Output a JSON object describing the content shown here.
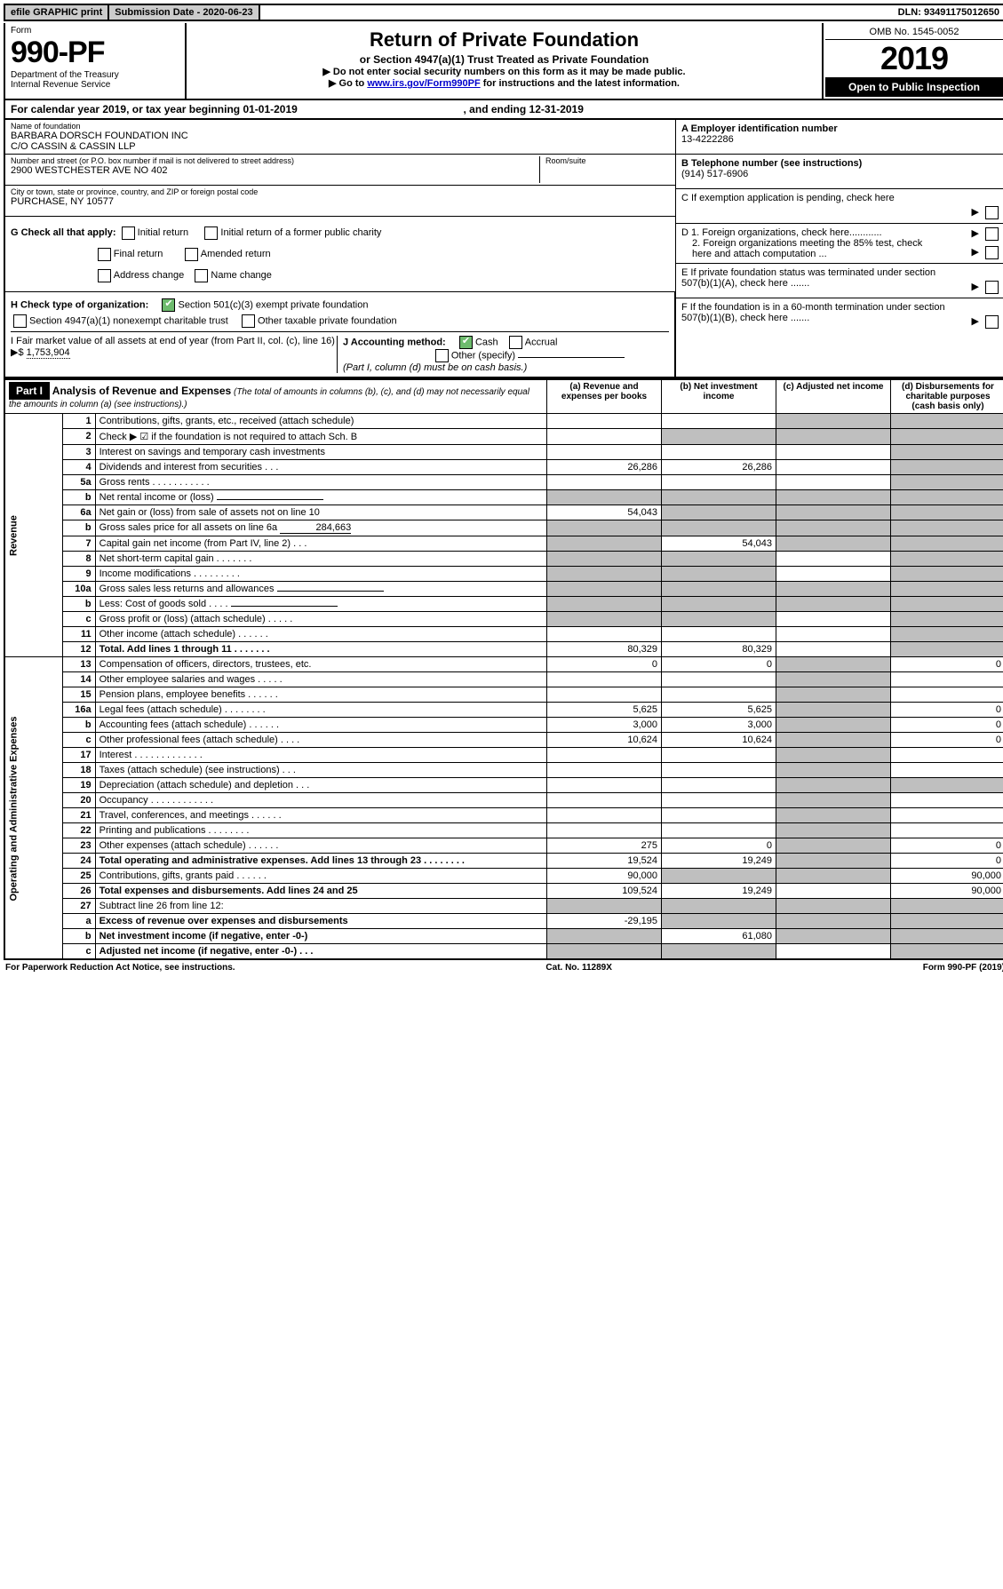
{
  "topbar": {
    "efile": "efile GRAPHIC print",
    "submission": "Submission Date - 2020-06-23",
    "dln": "DLN: 93491175012650"
  },
  "header": {
    "form_word": "Form",
    "form_num": "990-PF",
    "dept": "Department of the Treasury",
    "irs": "Internal Revenue Service",
    "title": "Return of Private Foundation",
    "subtitle": "or Section 4947(a)(1) Trust Treated as Private Foundation",
    "note1": "▶ Do not enter social security numbers on this form as it may be made public.",
    "note2_pre": "▶ Go to ",
    "note2_link": "www.irs.gov/Form990PF",
    "note2_post": " for instructions and the latest information.",
    "omb": "OMB No. 1545-0052",
    "year": "2019",
    "open": "Open to Public Inspection"
  },
  "calyear": {
    "text_pre": "For calendar year 2019, or tax year beginning 01-01-2019",
    "text_mid": ", and ending 12-31-2019"
  },
  "name": {
    "lbl": "Name of foundation",
    "line1": "BARBARA DORSCH FOUNDATION INC",
    "line2": "C/O CASSIN & CASSIN LLP"
  },
  "ein": {
    "lbl": "A Employer identification number",
    "val": "13-4222286"
  },
  "street": {
    "lbl": "Number and street (or P.O. box number if mail is not delivered to street address)",
    "val": "2900 WESTCHESTER AVE NO 402",
    "room_lbl": "Room/suite"
  },
  "phone": {
    "lbl": "B Telephone number (see instructions)",
    "val": "(914) 517-6906"
  },
  "city": {
    "lbl": "City or town, state or province, country, and ZIP or foreign postal code",
    "val": "PURCHASE, NY  10577"
  },
  "c_box": "C If exemption application is pending, check here",
  "g": {
    "label": "G Check all that apply:",
    "o1": "Initial return",
    "o2": "Final return",
    "o3": "Address change",
    "o4": "Initial return of a former public charity",
    "o5": "Amended return",
    "o6": "Name change"
  },
  "d": {
    "d1": "D 1. Foreign organizations, check here............",
    "d2": "2. Foreign organizations meeting the 85% test, check here and attach computation ..."
  },
  "e_box": "E  If private foundation status was terminated under section 507(b)(1)(A), check here .......",
  "f_box": "F  If the foundation is in a 60-month termination under section 507(b)(1)(B), check here .......",
  "h": {
    "label": "H Check type of organization:",
    "o1": "Section 501(c)(3) exempt private foundation",
    "o2": "Section 4947(a)(1) nonexempt charitable trust",
    "o3": "Other taxable private foundation"
  },
  "i": {
    "label": "I Fair market value of all assets at end of year (from Part II, col. (c), line 16) ▶$ ",
    "val": "1,753,904"
  },
  "j": {
    "label": "J Accounting method:",
    "cash": "Cash",
    "accrual": "Accrual",
    "other": "Other (specify)",
    "note": "(Part I, column (d) must be on cash basis.)"
  },
  "part1": {
    "label": "Part I",
    "title": "Analysis of Revenue and Expenses",
    "note": " (The total of amounts in columns (b), (c), and (d) may not necessarily equal the amounts in column (a) (see instructions).)",
    "col_a": "(a)  Revenue and expenses per books",
    "col_b": "(b)  Net investment income",
    "col_c": "(c)  Adjusted net income",
    "col_d": "(d)  Disbursements for charitable purposes (cash basis only)"
  },
  "labels": {
    "revenue": "Revenue",
    "expenses": "Operating and Administrative Expenses"
  },
  "rows": [
    {
      "num": "1",
      "desc": "Contributions, gifts, grants, etc., received (attach schedule)",
      "a": "",
      "b": "",
      "c": "g",
      "d": "g"
    },
    {
      "num": "2",
      "desc": "Check ▶ ☑ if the foundation is not required to attach Sch. B",
      "a": "",
      "b": "g",
      "c": "g",
      "d": "g",
      "dotsrow": true
    },
    {
      "num": "3",
      "desc": "Interest on savings and temporary cash investments",
      "a": "",
      "b": "",
      "c": "",
      "d": "g"
    },
    {
      "num": "4",
      "desc": "Dividends and interest from securities    .   .   .",
      "a": "26,286",
      "b": "26,286",
      "c": "",
      "d": "g"
    },
    {
      "num": "5a",
      "desc": "Gross rents    .   .   .   .   .   .   .   .   .   .   .",
      "a": "",
      "b": "",
      "c": "",
      "d": "g"
    },
    {
      "num": "b",
      "desc": "Net rental income or (loss)  ",
      "a": "g",
      "b": "g",
      "c": "g",
      "d": "g",
      "inlinebox": true
    },
    {
      "num": "6a",
      "desc": "Net gain or (loss) from sale of assets not on line 10",
      "a": "54,043",
      "b": "g",
      "c": "g",
      "d": "g"
    },
    {
      "num": "b",
      "desc": "Gross sales price for all assets on line 6a ",
      "a": "g",
      "b": "g",
      "c": "g",
      "d": "g",
      "inlineval": "284,663"
    },
    {
      "num": "7",
      "desc": "Capital gain net income (from Part IV, line 2)    .   .   .",
      "a": "g",
      "b": "54,043",
      "c": "g",
      "d": "g"
    },
    {
      "num": "8",
      "desc": "Net short-term capital gain    .   .   .   .   .   .   .",
      "a": "g",
      "b": "g",
      "c": "",
      "d": "g"
    },
    {
      "num": "9",
      "desc": "Income modifications   .   .   .   .   .   .   .   .   .",
      "a": "g",
      "b": "g",
      "c": "",
      "d": "g"
    },
    {
      "num": "10a",
      "desc": "Gross sales less returns and allowances",
      "a": "g",
      "b": "g",
      "c": "g",
      "d": "g",
      "inlinebox": true
    },
    {
      "num": "b",
      "desc": "Less: Cost of goods sold      .   .   .   .",
      "a": "g",
      "b": "g",
      "c": "g",
      "d": "g",
      "inlinebox": true
    },
    {
      "num": "c",
      "desc": "Gross profit or (loss) (attach schedule)    .   .   .   .   .",
      "a": "g",
      "b": "g",
      "c": "",
      "d": "g"
    },
    {
      "num": "11",
      "desc": "Other income (attach schedule)    .   .   .   .   .   .",
      "a": "",
      "b": "",
      "c": "",
      "d": "g"
    },
    {
      "num": "12",
      "desc": "Total. Add lines 1 through 11    .   .   .   .   .   .   .",
      "a": "80,329",
      "b": "80,329",
      "c": "",
      "d": "g",
      "bold": true
    },
    {
      "num": "13",
      "desc": "Compensation of officers, directors, trustees, etc.",
      "a": "0",
      "b": "0",
      "c": "g",
      "d": "0"
    },
    {
      "num": "14",
      "desc": "Other employee salaries and wages     .   .   .   .   .",
      "a": "",
      "b": "",
      "c": "g",
      "d": ""
    },
    {
      "num": "15",
      "desc": "Pension plans, employee benefits    .   .   .   .   .   .",
      "a": "",
      "b": "",
      "c": "g",
      "d": ""
    },
    {
      "num": "16a",
      "desc": "Legal fees (attach schedule)   .   .   .   .   .   .   .   .",
      "a": "5,625",
      "b": "5,625",
      "c": "g",
      "d": "0"
    },
    {
      "num": "b",
      "desc": "Accounting fees (attach schedule)   .   .   .   .   .   .",
      "a": "3,000",
      "b": "3,000",
      "c": "g",
      "d": "0"
    },
    {
      "num": "c",
      "desc": "Other professional fees (attach schedule)     .   .   .   .",
      "a": "10,624",
      "b": "10,624",
      "c": "g",
      "d": "0"
    },
    {
      "num": "17",
      "desc": "Interest   .   .   .   .   .   .   .   .   .   .   .   .   .",
      "a": "",
      "b": "",
      "c": "g",
      "d": ""
    },
    {
      "num": "18",
      "desc": "Taxes (attach schedule) (see instructions)     .   .   .",
      "a": "",
      "b": "",
      "c": "g",
      "d": ""
    },
    {
      "num": "19",
      "desc": "Depreciation (attach schedule) and depletion    .   .   .",
      "a": "",
      "b": "",
      "c": "g",
      "d": "g"
    },
    {
      "num": "20",
      "desc": "Occupancy   .   .   .   .   .   .   .   .   .   .   .   .",
      "a": "",
      "b": "",
      "c": "g",
      "d": ""
    },
    {
      "num": "21",
      "desc": "Travel, conferences, and meetings   .   .   .   .   .   .",
      "a": "",
      "b": "",
      "c": "g",
      "d": ""
    },
    {
      "num": "22",
      "desc": "Printing and publications   .   .   .   .   .   .   .   .",
      "a": "",
      "b": "",
      "c": "g",
      "d": ""
    },
    {
      "num": "23",
      "desc": "Other expenses (attach schedule)   .   .   .   .   .   .",
      "a": "275",
      "b": "0",
      "c": "g",
      "d": "0"
    },
    {
      "num": "24",
      "desc": "Total operating and administrative expenses. Add lines 13 through 23   .   .   .   .   .   .   .   .",
      "a": "19,524",
      "b": "19,249",
      "c": "g",
      "d": "0",
      "bold": true
    },
    {
      "num": "25",
      "desc": "Contributions, gifts, grants paid       .   .   .   .   .   .",
      "a": "90,000",
      "b": "g",
      "c": "g",
      "d": "90,000"
    },
    {
      "num": "26",
      "desc": "Total expenses and disbursements. Add lines 24 and 25",
      "a": "109,524",
      "b": "19,249",
      "c": "",
      "d": "90,000",
      "bold": true
    },
    {
      "num": "27",
      "desc": "Subtract line 26 from line 12:",
      "a": "g",
      "b": "g",
      "c": "g",
      "d": "g"
    },
    {
      "num": "a",
      "desc": "Excess of revenue over expenses and disbursements",
      "a": "-29,195",
      "b": "g",
      "c": "g",
      "d": "g",
      "bold": true
    },
    {
      "num": "b",
      "desc": "Net investment income (if negative, enter -0-)",
      "a": "g",
      "b": "61,080",
      "c": "g",
      "d": "g",
      "bold": true
    },
    {
      "num": "c",
      "desc": "Adjusted net income (if negative, enter -0-)    .   .   .",
      "a": "g",
      "b": "g",
      "c": "",
      "d": "g",
      "bold": true
    }
  ],
  "footer": {
    "left": "For Paperwork Reduction Act Notice, see instructions.",
    "mid": "Cat. No. 11289X",
    "right": "Form 990-PF (2019)"
  }
}
